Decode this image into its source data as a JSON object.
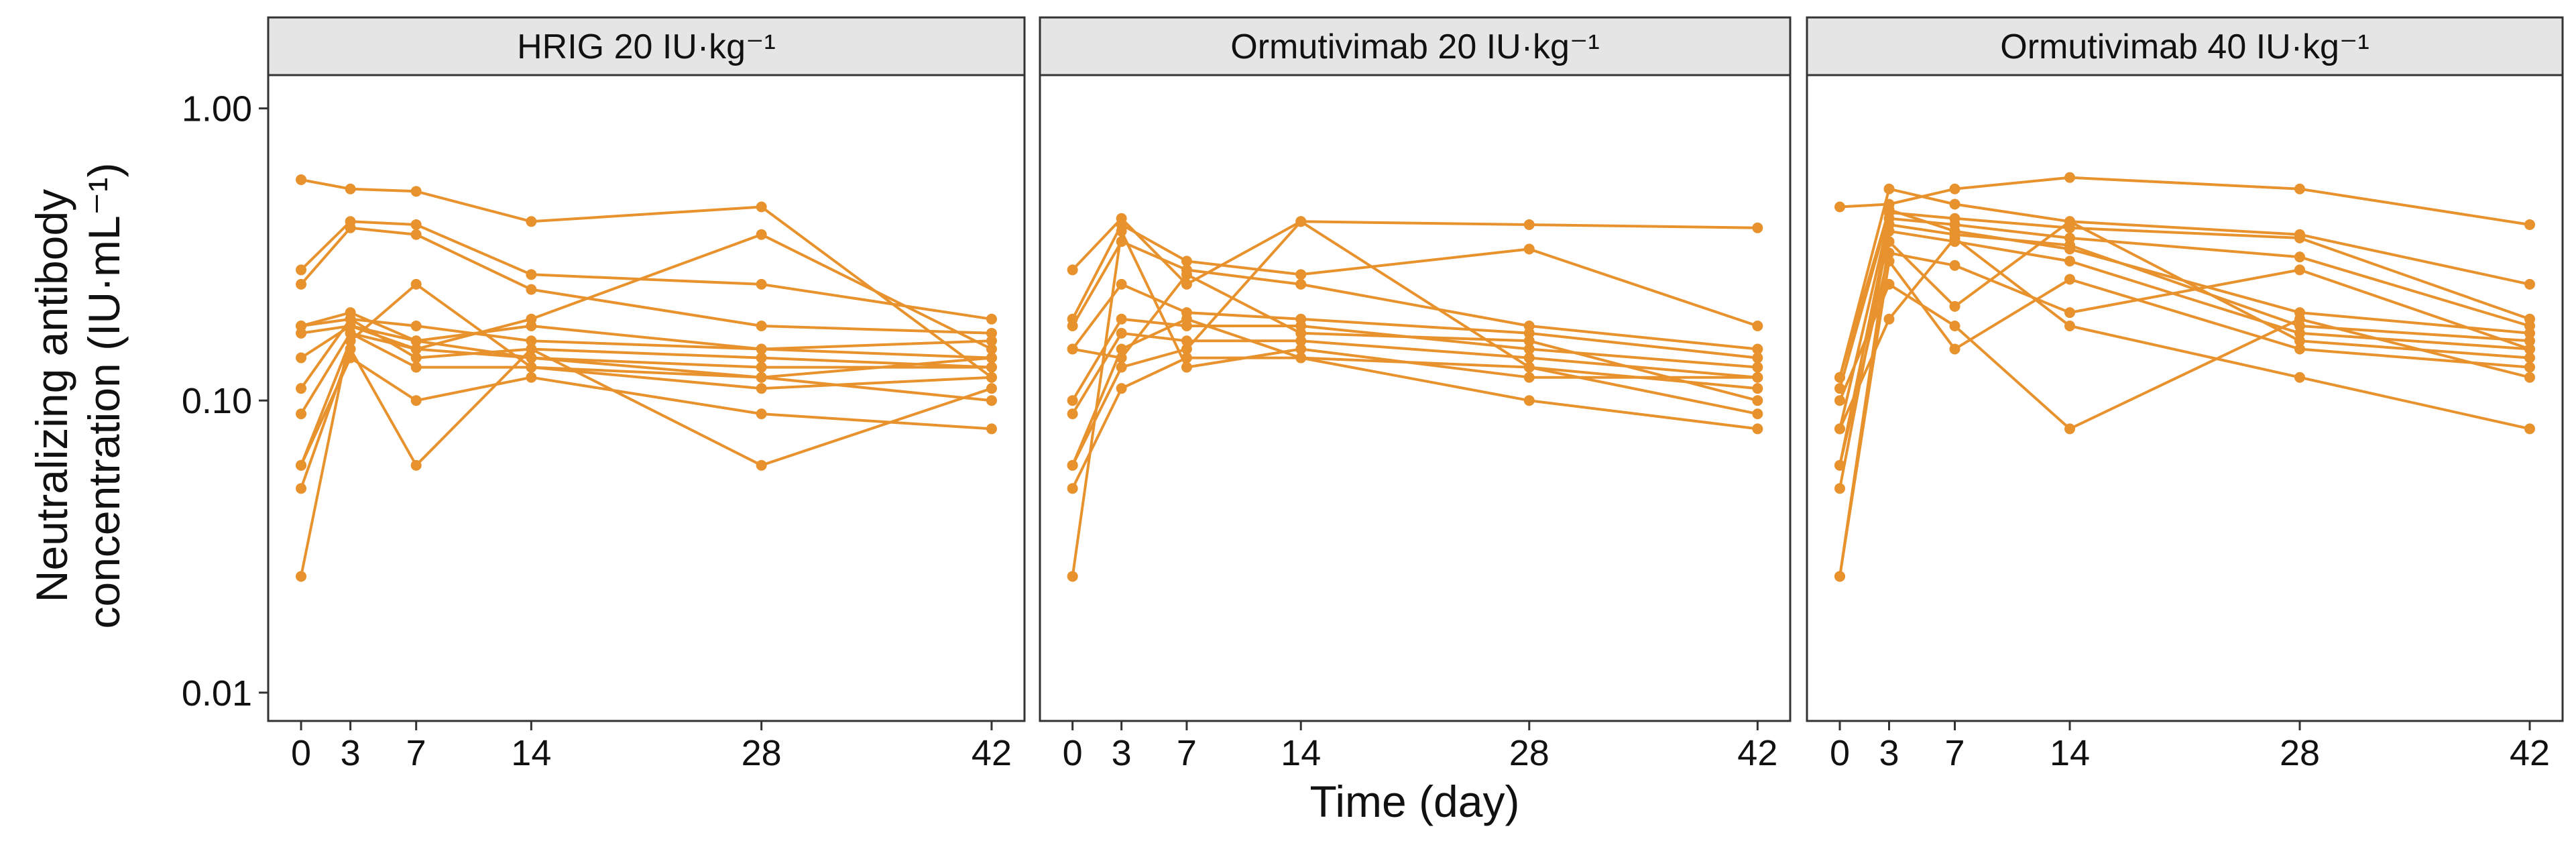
{
  "chart_data": {
    "type": "line",
    "xlabel": "Time (day)",
    "ylabel_line1": "Neutralizing antibody",
    "ylabel_line2": "concentration (IU·mL⁻¹)",
    "yscale": "log",
    "ylim": [
      0.008,
      1.3
    ],
    "xlim": [
      -2,
      44
    ],
    "xticks": [
      0,
      3,
      7,
      14,
      28,
      42
    ],
    "yticks": [
      0.01,
      0.1,
      1.0
    ],
    "ytick_labels": [
      "0.01",
      "0.10",
      "1.00"
    ],
    "line_color": "#E8922E",
    "panels": [
      {
        "title": "HRIG 20 IU·kg⁻¹",
        "series": [
          {
            "name": "s1",
            "x": [
              0,
              3,
              7,
              14,
              28,
              42
            ],
            "y": [
              0.57,
              0.53,
              0.52,
              0.41,
              0.46,
              0.12
            ]
          },
          {
            "name": "s2",
            "x": [
              0,
              3,
              7,
              14,
              28,
              42
            ],
            "y": [
              0.28,
              0.41,
              0.4,
              0.27,
              0.25,
              0.19
            ]
          },
          {
            "name": "s3",
            "x": [
              0,
              3,
              7,
              14,
              28,
              42
            ],
            "y": [
              0.25,
              0.39,
              0.37,
              0.24,
              0.18,
              0.17
            ]
          },
          {
            "name": "s4",
            "x": [
              0,
              3,
              7,
              14,
              28,
              42
            ],
            "y": [
              0.18,
              0.19,
              0.18,
              0.16,
              0.15,
              0.16
            ]
          },
          {
            "name": "s5",
            "x": [
              0,
              3,
              7,
              14,
              28,
              42
            ],
            "y": [
              0.17,
              0.18,
              0.16,
              0.14,
              0.13,
              0.13
            ]
          },
          {
            "name": "s6",
            "x": [
              0,
              3,
              7,
              14,
              28,
              42
            ],
            "y": [
              0.14,
              0.18,
              0.15,
              0.19,
              0.37,
              0.15
            ]
          },
          {
            "name": "s7",
            "x": [
              0,
              3,
              7,
              14,
              28,
              42
            ],
            "y": [
              0.11,
              0.19,
              0.14,
              0.15,
              0.14,
              0.13
            ]
          },
          {
            "name": "s8",
            "x": [
              0,
              3,
              7,
              14,
              28,
              42
            ],
            "y": [
              0.09,
              0.17,
              0.15,
              0.14,
              0.12,
              0.14
            ]
          },
          {
            "name": "s9",
            "x": [
              0,
              3,
              7,
              14,
              28,
              42
            ],
            "y": [
              0.06,
              0.16,
              0.25,
              0.13,
              0.11,
              0.12
            ]
          },
          {
            "name": "s10",
            "x": [
              0,
              3,
              7,
              14,
              28,
              42
            ],
            "y": [
              0.06,
              0.14,
              0.1,
              0.12,
              0.09,
              0.08
            ]
          },
          {
            "name": "s11",
            "x": [
              0,
              3,
              7,
              14,
              28,
              42
            ],
            "y": [
              0.05,
              0.15,
              0.06,
              0.15,
              0.06,
              0.11
            ]
          },
          {
            "name": "s12",
            "x": [
              0,
              3,
              7,
              14,
              28,
              42
            ],
            "y": [
              0.025,
              0.17,
              0.13,
              0.13,
              0.12,
              0.1
            ]
          },
          {
            "name": "s13",
            "x": [
              0,
              3,
              7,
              14,
              28,
              42
            ],
            "y": [
              0.18,
              0.2,
              0.16,
              0.18,
              0.15,
              0.14
            ]
          }
        ]
      },
      {
        "title": "Ormutivimab  20 IU·kg⁻¹",
        "series": [
          {
            "name": "s1",
            "x": [
              0,
              3,
              7,
              14,
              28,
              42
            ],
            "y": [
              0.28,
              0.42,
              0.25,
              0.41,
              0.4,
              0.39
            ]
          },
          {
            "name": "s2",
            "x": [
              0,
              3,
              7,
              14,
              28,
              42
            ],
            "y": [
              0.19,
              0.4,
              0.3,
              0.27,
              0.33,
              0.18
            ]
          },
          {
            "name": "s3",
            "x": [
              0,
              3,
              7,
              14,
              28,
              42
            ],
            "y": [
              0.18,
              0.35,
              0.28,
              0.25,
              0.18,
              0.15
            ]
          },
          {
            "name": "s4",
            "x": [
              0,
              3,
              7,
              14,
              28,
              42
            ],
            "y": [
              0.15,
              0.25,
              0.2,
              0.19,
              0.17,
              0.14
            ]
          },
          {
            "name": "s5",
            "x": [
              0,
              3,
              7,
              14,
              28,
              42
            ],
            "y": [
              0.1,
              0.19,
              0.18,
              0.18,
              0.15,
              0.13
            ]
          },
          {
            "name": "s6",
            "x": [
              0,
              3,
              7,
              14,
              28,
              42
            ],
            "y": [
              0.09,
              0.17,
              0.16,
              0.16,
              0.14,
              0.12
            ]
          },
          {
            "name": "s7",
            "x": [
              0,
              3,
              7,
              14,
              28,
              42
            ],
            "y": [
              0.06,
              0.13,
              0.15,
              0.41,
              0.13,
              0.11
            ]
          },
          {
            "name": "s8",
            "x": [
              0,
              3,
              7,
              14,
              28,
              42
            ],
            "y": [
              0.05,
              0.11,
              0.14,
              0.14,
              0.13,
              0.09
            ]
          },
          {
            "name": "s9",
            "x": [
              0,
              3,
              7,
              14,
              28,
              42
            ],
            "y": [
              0.025,
              0.38,
              0.13,
              0.15,
              0.12,
              0.12
            ]
          },
          {
            "name": "s10",
            "x": [
              0,
              3,
              7,
              14,
              28,
              42
            ],
            "y": [
              0.06,
              0.15,
              0.19,
              0.14,
              0.1,
              0.08
            ]
          },
          {
            "name": "s11",
            "x": [
              0,
              3,
              7,
              14,
              28,
              42
            ],
            "y": [
              0.15,
              0.14,
              0.27,
              0.17,
              0.16,
              0.1
            ]
          }
        ]
      },
      {
        "title": "Ormutivimab  40 IU·kg⁻¹",
        "series": [
          {
            "name": "s1",
            "x": [
              0,
              3,
              7,
              14,
              28,
              42
            ],
            "y": [
              0.46,
              0.47,
              0.53,
              0.58,
              0.53,
              0.4
            ]
          },
          {
            "name": "s2",
            "x": [
              0,
              3,
              7,
              14,
              28,
              42
            ],
            "y": [
              0.12,
              0.53,
              0.47,
              0.41,
              0.37,
              0.25
            ]
          },
          {
            "name": "s3",
            "x": [
              0,
              3,
              7,
              14,
              28,
              42
            ],
            "y": [
              0.11,
              0.44,
              0.42,
              0.39,
              0.36,
              0.19
            ]
          },
          {
            "name": "s4",
            "x": [
              0,
              3,
              7,
              14,
              28,
              42
            ],
            "y": [
              0.08,
              0.42,
              0.4,
              0.36,
              0.31,
              0.18
            ]
          },
          {
            "name": "s5",
            "x": [
              0,
              3,
              7,
              14,
              28,
              42
            ],
            "y": [
              0.06,
              0.4,
              0.37,
              0.34,
              0.18,
              0.16
            ]
          },
          {
            "name": "s6",
            "x": [
              0,
              3,
              7,
              14,
              28,
              42
            ],
            "y": [
              0.05,
              0.38,
              0.35,
              0.3,
              0.17,
              0.15
            ]
          },
          {
            "name": "s7",
            "x": [
              0,
              3,
              7,
              14,
              28,
              42
            ],
            "y": [
              0.025,
              0.35,
              0.21,
              0.41,
              0.16,
              0.14
            ]
          },
          {
            "name": "s8",
            "x": [
              0,
              3,
              7,
              14,
              28,
              42
            ],
            "y": [
              0.025,
              0.3,
              0.15,
              0.26,
              0.15,
              0.13
            ]
          },
          {
            "name": "s9",
            "x": [
              0,
              3,
              7,
              14,
              28,
              42
            ],
            "y": [
              0.1,
              0.25,
              0.18,
              0.08,
              0.19,
              0.12
            ]
          },
          {
            "name": "s10",
            "x": [
              0,
              3,
              7,
              14,
              28,
              42
            ],
            "y": [
              0.08,
              0.19,
              0.36,
              0.18,
              0.12,
              0.08
            ]
          },
          {
            "name": "s11",
            "x": [
              0,
              3,
              7,
              14,
              28,
              42
            ],
            "y": [
              0.06,
              0.32,
              0.29,
              0.2,
              0.28,
              0.15
            ]
          },
          {
            "name": "s12",
            "x": [
              0,
              3,
              7,
              14,
              28,
              42
            ],
            "y": [
              0.12,
              0.45,
              0.38,
              0.33,
              0.2,
              0.17
            ]
          }
        ]
      }
    ]
  }
}
